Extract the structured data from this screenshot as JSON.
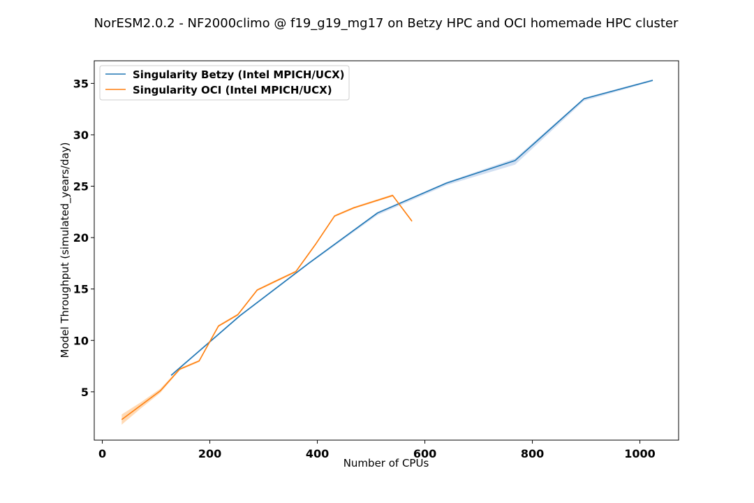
{
  "chart_data": {
    "type": "line",
    "title": "NorESM2.0.2 - NF2000climo @ f19_g19_mg17 on Betzy HPC and OCI homemade HPC cluster",
    "xlabel": "Number of CPUs",
    "ylabel": "Model Throughput (simulated_years/day)",
    "xlim": [
      -15,
      1072
    ],
    "ylim": [
      0.3,
      37.2
    ],
    "xticks": [
      0,
      200,
      400,
      600,
      800,
      1000
    ],
    "yticks": [
      5,
      10,
      15,
      20,
      25,
      30,
      35
    ],
    "legend_position": "top-left",
    "grid": false,
    "series": [
      {
        "name": "Singularity Betzy (Intel MPICH/UCX)",
        "color": "#1f77b4",
        "band_color": "#aec7e8",
        "x": [
          128,
          256,
          384,
          512,
          640,
          768,
          896,
          1024
        ],
        "y": [
          6.6,
          12.4,
          17.5,
          22.4,
          25.3,
          27.5,
          33.5,
          35.3
        ],
        "y_low": [
          6.5,
          12.3,
          17.4,
          22.2,
          25.1,
          27.1,
          33.3,
          35.2
        ],
        "y_high": [
          6.7,
          12.5,
          17.6,
          22.5,
          25.4,
          27.7,
          33.6,
          35.4
        ]
      },
      {
        "name": "Singularity OCI (Intel MPICH/UCX)",
        "color": "#ff7f0e",
        "band_color": "#ffbb78",
        "x": [
          36,
          72,
          108,
          144,
          180,
          216,
          252,
          288,
          324,
          360,
          396,
          432,
          468,
          504,
          540,
          576
        ],
        "y": [
          2.3,
          3.7,
          5.1,
          7.2,
          8.0,
          11.4,
          12.5,
          14.9,
          15.8,
          16.7,
          19.3,
          22.1,
          22.9,
          23.5,
          24.1,
          21.6
        ],
        "y_low": [
          1.8,
          3.4,
          4.9,
          7.1,
          7.9,
          11.3,
          12.4,
          14.8,
          15.7,
          16.6,
          19.2,
          22.0,
          22.8,
          23.4,
          24.0,
          21.5
        ],
        "y_high": [
          2.8,
          4.0,
          5.3,
          7.3,
          8.1,
          11.5,
          12.6,
          15.0,
          15.9,
          16.8,
          19.4,
          22.2,
          23.0,
          23.6,
          24.2,
          21.7
        ]
      }
    ]
  }
}
